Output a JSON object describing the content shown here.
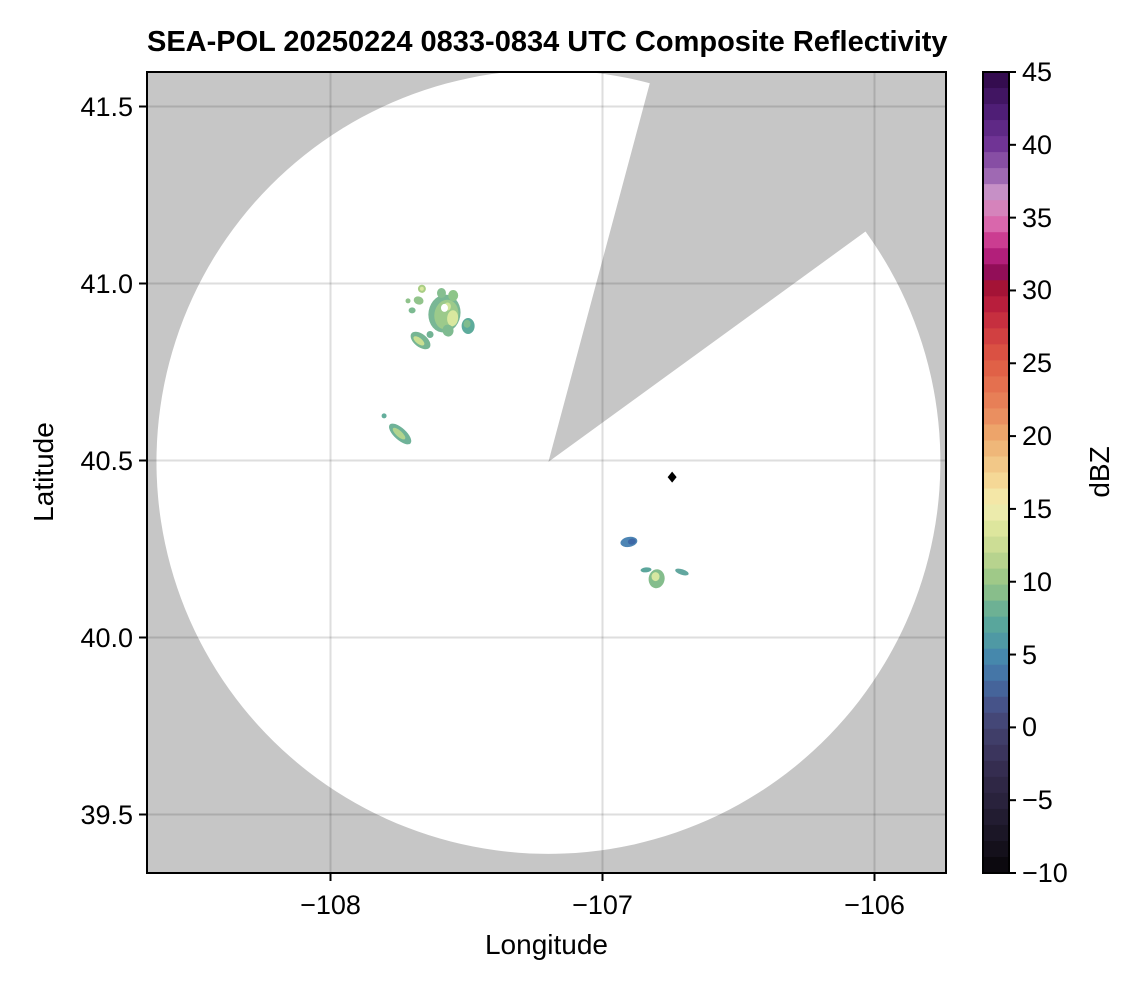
{
  "title": "SEA-POL 20250224 0833-0834 UTC Composite Reflectivity",
  "axes": {
    "xlabel": "Longitude",
    "ylabel": "Latitude",
    "xticks": [
      {
        "value": -108,
        "label": "−108"
      },
      {
        "value": -107,
        "label": "−107"
      },
      {
        "value": -106,
        "label": "−106"
      }
    ],
    "yticks": [
      {
        "value": 39.5,
        "label": "39.5"
      },
      {
        "value": 40.0,
        "label": "40.0"
      },
      {
        "value": 40.5,
        "label": "40.5"
      },
      {
        "value": 41.0,
        "label": "41.0"
      },
      {
        "value": 41.5,
        "label": "41.5"
      }
    ],
    "xlim": [
      -108.675,
      -105.737
    ],
    "ylim": [
      39.335,
      41.597
    ],
    "grid": true
  },
  "colorbar": {
    "label": "dBZ",
    "vmin": -10,
    "vmax": 45,
    "n_levels": 50,
    "ticks": [
      {
        "value": 45,
        "label": "45"
      },
      {
        "value": 40,
        "label": "40"
      },
      {
        "value": 35,
        "label": "35"
      },
      {
        "value": 30,
        "label": "30"
      },
      {
        "value": 25,
        "label": "25"
      },
      {
        "value": 20,
        "label": "20"
      },
      {
        "value": 15,
        "label": "15"
      },
      {
        "value": 10,
        "label": "10"
      },
      {
        "value": 5,
        "label": "5"
      },
      {
        "value": 0,
        "label": "0"
      },
      {
        "value": -5,
        "label": "−5"
      },
      {
        "value": -10,
        "label": "−10"
      }
    ],
    "stops": [
      {
        "v": 45.0,
        "c": "#2d0845"
      },
      {
        "v": 42.0,
        "c": "#52207a"
      },
      {
        "v": 40.0,
        "c": "#713596"
      },
      {
        "v": 38.0,
        "c": "#9a64b0"
      },
      {
        "v": 36.8,
        "c": "#c590c6"
      },
      {
        "v": 36.0,
        "c": "#d48cc0"
      },
      {
        "v": 34.5,
        "c": "#d966ab"
      },
      {
        "v": 33.5,
        "c": "#cc3e92"
      },
      {
        "v": 32.5,
        "c": "#b82380"
      },
      {
        "v": 31.8,
        "c": "#9c0e66"
      },
      {
        "v": 31.0,
        "c": "#8d0e51"
      },
      {
        "v": 30.2,
        "c": "#a31236"
      },
      {
        "v": 29.0,
        "c": "#b91f3c"
      },
      {
        "v": 27.5,
        "c": "#cc3640"
      },
      {
        "v": 26.0,
        "c": "#d84d42"
      },
      {
        "v": 24.5,
        "c": "#e16347"
      },
      {
        "v": 23.0,
        "c": "#e67853"
      },
      {
        "v": 21.5,
        "c": "#ea8c5f"
      },
      {
        "v": 20.0,
        "c": "#eda96c"
      },
      {
        "v": 18.5,
        "c": "#f1c183"
      },
      {
        "v": 17.0,
        "c": "#f5d795"
      },
      {
        "v": 15.8,
        "c": "#f4e8a8"
      },
      {
        "v": 15.0,
        "c": "#efecb0"
      },
      {
        "v": 13.5,
        "c": "#dbe59b"
      },
      {
        "v": 12.0,
        "c": "#c3d991"
      },
      {
        "v": 10.5,
        "c": "#a2ca88"
      },
      {
        "v": 9.5,
        "c": "#8ec189"
      },
      {
        "v": 8.5,
        "c": "#74b491"
      },
      {
        "v": 7.0,
        "c": "#58a69c"
      },
      {
        "v": 5.5,
        "c": "#4b94a7"
      },
      {
        "v": 4.5,
        "c": "#4482ae"
      },
      {
        "v": 3.0,
        "c": "#45699f"
      },
      {
        "v": 1.5,
        "c": "#465288"
      },
      {
        "v": 0.0,
        "c": "#434370"
      },
      {
        "v": -1.5,
        "c": "#3c3760"
      },
      {
        "v": -3.0,
        "c": "#342c4e"
      },
      {
        "v": -5.0,
        "c": "#29223c"
      },
      {
        "v": -7.0,
        "c": "#1d1829"
      },
      {
        "v": -8.5,
        "c": "#130f1a"
      },
      {
        "v": -10.0,
        "c": "#080609"
      }
    ]
  },
  "colors": {
    "figure_background": "#ffffff",
    "nodata_gray": "#c6c6c6",
    "coverage_white": "#ffffff",
    "gridline": "rgba(0,0,0,0.13)",
    "frame": "#000000",
    "text": "#000000"
  },
  "chart_data": {
    "type": "heatmap",
    "description": "Radar composite reflectivity PPI on a lon/lat map. White disc = radar coverage area on gray no-data background; a wedge sector of missing data (azimuth ~15–54°) is cut from the disc. Scattered weak echoes (≈3–16 dBZ).",
    "radar": {
      "center_lon": -107.199,
      "center_lat": 40.496,
      "range_deg_lon": 1.441,
      "sector_missing_az_deg": [
        15,
        54
      ]
    },
    "site_marker": {
      "lon": -106.744,
      "lat": 40.453,
      "symbol": "diamond",
      "color": "#000000"
    },
    "echoes": [
      {
        "lon": -107.664,
        "lat": 40.985,
        "rx_deg": 0.0147,
        "ry_deg": 0.0113,
        "rot_deg": -20,
        "color": "#a9ce85",
        "dbz_approx": 13
      },
      {
        "lon": -107.664,
        "lat": 40.985,
        "rx_deg": 0.007,
        "ry_deg": 0.0056,
        "rot_deg": 0,
        "color": "#d9e8a0",
        "dbz_approx": 15
      },
      {
        "lon": -107.715,
        "lat": 40.951,
        "rx_deg": 0.0092,
        "ry_deg": 0.0071,
        "rot_deg": 0,
        "color": "#8fc28b",
        "dbz_approx": 11
      },
      {
        "lon": -107.676,
        "lat": 40.952,
        "rx_deg": 0.0184,
        "ry_deg": 0.0113,
        "rot_deg": 20,
        "color": "#92c48c",
        "dbz_approx": 11
      },
      {
        "lon": -107.7,
        "lat": 40.924,
        "rx_deg": 0.0129,
        "ry_deg": 0.0085,
        "rot_deg": 0,
        "color": "#7cba91",
        "dbz_approx": 9
      },
      {
        "lon": -107.581,
        "lat": 40.915,
        "rx_deg": 0.0588,
        "ry_deg": 0.0537,
        "rot_deg": 10,
        "color": "#79b795",
        "dbz_approx": 9
      },
      {
        "lon": -107.592,
        "lat": 40.973,
        "rx_deg": 0.0165,
        "ry_deg": 0.0141,
        "rot_deg": 0,
        "color": "#86bf90",
        "dbz_approx": 10
      },
      {
        "lon": -107.549,
        "lat": 40.966,
        "rx_deg": 0.0184,
        "ry_deg": 0.0155,
        "rot_deg": 0,
        "color": "#8ec589",
        "dbz_approx": 11
      },
      {
        "lon": -107.574,
        "lat": 40.912,
        "rx_deg": 0.0441,
        "ry_deg": 0.0424,
        "rot_deg": 10,
        "color": "#9cca8b",
        "dbz_approx": 12
      },
      {
        "lon": -107.551,
        "lat": 40.902,
        "rx_deg": 0.0202,
        "ry_deg": 0.0226,
        "rot_deg": 5,
        "color": "#d9e89f",
        "dbz_approx": 15
      },
      {
        "lon": -107.57,
        "lat": 40.935,
        "rx_deg": 0.0129,
        "ry_deg": 0.0113,
        "rot_deg": 0,
        "color": "#cfe49a",
        "dbz_approx": 14
      },
      {
        "lon": -107.581,
        "lat": 40.931,
        "rx_deg": 0.0129,
        "ry_deg": 0.0113,
        "rot_deg": 0,
        "color": "#ffffff",
        "dbz_approx": null
      },
      {
        "lon": -107.568,
        "lat": 40.867,
        "rx_deg": 0.0202,
        "ry_deg": 0.0169,
        "rot_deg": -15,
        "color": "#7fbb90",
        "dbz_approx": 10
      },
      {
        "lon": -107.494,
        "lat": 40.88,
        "rx_deg": 0.0239,
        "ry_deg": 0.0226,
        "rot_deg": 0,
        "color": "#5dab9b",
        "dbz_approx": 8
      },
      {
        "lon": -107.498,
        "lat": 40.886,
        "rx_deg": 0.0129,
        "ry_deg": 0.0113,
        "rot_deg": 0,
        "color": "#81bc8d",
        "dbz_approx": 10
      },
      {
        "lon": -107.669,
        "lat": 40.839,
        "rx_deg": 0.0423,
        "ry_deg": 0.0184,
        "rot_deg": 38,
        "color": "#76b593",
        "dbz_approx": 9
      },
      {
        "lon": -107.675,
        "lat": 40.838,
        "rx_deg": 0.0239,
        "ry_deg": 0.0085,
        "rot_deg": 38,
        "color": "#c9df92",
        "dbz_approx": 14
      },
      {
        "lon": -107.634,
        "lat": 40.856,
        "rx_deg": 0.0129,
        "ry_deg": 0.0099,
        "rot_deg": 0,
        "color": "#72b394",
        "dbz_approx": 9
      },
      {
        "lon": -107.803,
        "lat": 40.626,
        "rx_deg": 0.0092,
        "ry_deg": 0.0071,
        "rot_deg": 0,
        "color": "#64ae9c",
        "dbz_approx": 8
      },
      {
        "lon": -107.744,
        "lat": 40.575,
        "rx_deg": 0.0515,
        "ry_deg": 0.0169,
        "rot_deg": 42,
        "color": "#6fb298",
        "dbz_approx": 9
      },
      {
        "lon": -107.748,
        "lat": 40.576,
        "rx_deg": 0.0294,
        "ry_deg": 0.0085,
        "rot_deg": 42,
        "color": "#b2d48e",
        "dbz_approx": 13
      },
      {
        "lon": -106.903,
        "lat": 40.27,
        "rx_deg": 0.0313,
        "ry_deg": 0.0141,
        "rot_deg": -10,
        "color": "#4d85b4",
        "dbz_approx": 5
      },
      {
        "lon": -106.892,
        "lat": 40.271,
        "rx_deg": 0.0147,
        "ry_deg": 0.0085,
        "rot_deg": -10,
        "color": "#3d68a6",
        "dbz_approx": 3
      },
      {
        "lon": -106.84,
        "lat": 40.191,
        "rx_deg": 0.0202,
        "ry_deg": 0.0071,
        "rot_deg": -5,
        "color": "#5ca69c",
        "dbz_approx": 8
      },
      {
        "lon": -106.801,
        "lat": 40.166,
        "rx_deg": 0.0294,
        "ry_deg": 0.0268,
        "rot_deg": 10,
        "color": "#84bd8c",
        "dbz_approx": 10
      },
      {
        "lon": -106.805,
        "lat": 40.172,
        "rx_deg": 0.0147,
        "ry_deg": 0.0127,
        "rot_deg": 0,
        "color": "#d7e7a1",
        "dbz_approx": 15
      },
      {
        "lon": -106.708,
        "lat": 40.185,
        "rx_deg": 0.0257,
        "ry_deg": 0.0079,
        "rot_deg": 18,
        "color": "#62a79f",
        "dbz_approx": 8
      }
    ]
  }
}
